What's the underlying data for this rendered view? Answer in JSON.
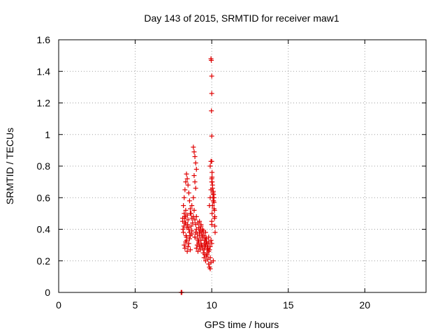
{
  "chart_data": {
    "type": "scatter",
    "title": "Day 143 of 2015, SRMTID for receiver maw1",
    "xlabel": "GPS time / hours",
    "ylabel": "SRMTID / TECUs",
    "xlim": [
      0,
      24
    ],
    "ylim": [
      0,
      1.6
    ],
    "xticks": [
      0,
      5,
      10,
      15,
      20
    ],
    "yticks": [
      0,
      0.2,
      0.4,
      0.6,
      0.8,
      1,
      1.2,
      1.4,
      1.6
    ],
    "xtick_labels": [
      "0",
      "5",
      "10",
      "15",
      "20"
    ],
    "ytick_labels": [
      "0",
      "0.2",
      "0.4",
      "0.6",
      "0.8",
      "1",
      "1.2",
      "1.4",
      "1.6"
    ],
    "grid": true,
    "color": "#e00000",
    "series": [
      {
        "name": "SRMTID",
        "x": [
          8.0,
          8.02,
          8.05,
          8.1,
          8.12,
          8.15,
          8.18,
          8.2,
          8.22,
          8.25,
          8.28,
          8.3,
          8.32,
          8.35,
          8.38,
          8.4,
          8.42,
          8.45,
          8.15,
          8.2,
          8.25,
          8.3,
          8.35,
          8.4,
          8.45,
          8.5,
          8.55,
          8.6,
          8.65,
          8.7,
          8.2,
          8.25,
          8.3,
          8.35,
          8.4,
          8.45,
          8.5,
          8.55,
          8.6,
          8.5,
          8.55,
          8.6,
          8.65,
          8.7,
          8.75,
          8.8,
          8.85,
          8.9,
          8.95,
          8.8,
          8.85,
          8.9,
          8.95,
          9.0,
          8.85,
          8.9,
          8.95,
          8.9,
          8.95,
          9.0,
          9.05,
          9.1,
          9.15,
          9.2,
          9.25,
          9.3,
          9.35,
          9.4,
          9.0,
          9.05,
          9.1,
          9.15,
          9.2,
          9.25,
          9.3,
          9.35,
          9.4,
          9.45,
          9.5,
          9.55,
          9.6,
          9.65,
          9.7,
          9.1,
          9.15,
          9.2,
          9.25,
          9.3,
          9.35,
          9.4,
          9.45,
          9.5,
          9.55,
          9.6,
          9.65,
          9.7,
          9.75,
          9.8,
          9.5,
          9.55,
          9.6,
          9.65,
          9.7,
          9.75,
          9.8,
          9.85,
          9.9,
          9.95,
          9.7,
          9.75,
          9.8,
          9.85,
          9.9,
          9.95,
          10.0,
          9.85,
          9.9,
          9.95,
          10.0,
          10.02,
          10.05,
          10.08,
          10.1,
          10.12,
          10.15,
          10.18,
          10.2,
          10.0,
          10.02,
          10.05,
          10.08,
          10.1,
          10.12,
          10.15,
          10.18,
          10.2,
          10.22,
          9.9,
          9.95,
          10.0,
          10.05,
          10.1,
          10.15,
          9.95,
          9.97,
          10.0,
          10.0,
          9.98,
          10.0,
          10.0,
          10.02,
          10.03,
          8.1,
          8.3,
          8.5,
          8.7,
          8.9,
          9.1,
          9.3,
          9.5,
          9.7,
          9.9,
          10.1,
          8.6,
          8.7,
          8.8,
          9.0,
          9.2,
          9.4,
          9.6,
          9.8,
          10.0
        ],
        "y": [
          0.0,
          0.0,
          0.0,
          0.45,
          0.4,
          0.38,
          0.42,
          0.5,
          0.47,
          0.44,
          0.48,
          0.52,
          0.36,
          0.33,
          0.41,
          0.49,
          0.43,
          0.46,
          0.55,
          0.6,
          0.65,
          0.7,
          0.75,
          0.72,
          0.68,
          0.63,
          0.58,
          0.53,
          0.5,
          0.47,
          0.3,
          0.28,
          0.32,
          0.35,
          0.26,
          0.29,
          0.31,
          0.34,
          0.27,
          0.4,
          0.38,
          0.36,
          0.42,
          0.39,
          0.44,
          0.48,
          0.52,
          0.46,
          0.43,
          0.92,
          0.89,
          0.86,
          0.82,
          0.78,
          0.74,
          0.7,
          0.66,
          0.35,
          0.38,
          0.4,
          0.37,
          0.34,
          0.31,
          0.36,
          0.39,
          0.42,
          0.38,
          0.35,
          0.28,
          0.3,
          0.26,
          0.32,
          0.29,
          0.27,
          0.33,
          0.3,
          0.28,
          0.25,
          0.31,
          0.29,
          0.34,
          0.32,
          0.27,
          0.44,
          0.41,
          0.38,
          0.4,
          0.43,
          0.37,
          0.35,
          0.39,
          0.36,
          0.33,
          0.3,
          0.34,
          0.31,
          0.28,
          0.26,
          0.22,
          0.24,
          0.2,
          0.23,
          0.25,
          0.21,
          0.18,
          0.16,
          0.15,
          0.19,
          0.3,
          0.28,
          0.32,
          0.27,
          0.29,
          0.33,
          0.31,
          0.55,
          0.6,
          0.65,
          0.7,
          0.73,
          0.68,
          0.63,
          0.58,
          0.62,
          0.57,
          0.52,
          0.48,
          0.45,
          0.5,
          0.55,
          0.6,
          0.64,
          0.58,
          0.53,
          0.47,
          0.42,
          0.38,
          0.8,
          0.83,
          0.72,
          0.66,
          0.62,
          0.6,
          1.48,
          1.47,
          1.37,
          1.26,
          1.15,
          0.99,
          0.83,
          0.76,
          0.7,
          0.47,
          0.44,
          0.41,
          0.37,
          0.35,
          0.33,
          0.3,
          0.27,
          0.24,
          0.22,
          0.2,
          0.5,
          0.55,
          0.6,
          0.48,
          0.45,
          0.4,
          0.38,
          0.35,
          0.43
        ]
      }
    ]
  }
}
